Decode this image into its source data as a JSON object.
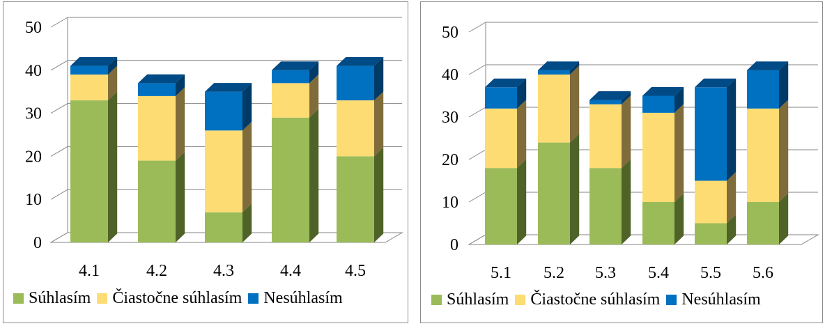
{
  "colors": {
    "green": "#9bbb59",
    "yellow": "#fedc74",
    "blue": "#0070c0"
  },
  "chart_data": [
    {
      "type": "bar",
      "stacked": true,
      "style": "3d",
      "categories": [
        "4.1",
        "4.2",
        "4.3",
        "4.4",
        "4.5"
      ],
      "series": [
        {
          "name": "Súhlasím",
          "values": [
            33,
            19,
            7,
            29,
            20
          ]
        },
        {
          "name": "Čiastočne súhlasím",
          "values": [
            6,
            15,
            19,
            8,
            13
          ]
        },
        {
          "name": "Nesúhlasím",
          "values": [
            2,
            3,
            9,
            3,
            8
          ]
        }
      ],
      "yticks": [
        0,
        10,
        20,
        30,
        40,
        50
      ],
      "ylim": [
        0,
        50
      ],
      "grid": true,
      "legend": "bottom"
    },
    {
      "type": "bar",
      "stacked": true,
      "style": "3d",
      "categories": [
        "5.1",
        "5.2",
        "5.3",
        "5.4",
        "5.5",
        "5.6"
      ],
      "series": [
        {
          "name": "Súhlasím",
          "values": [
            18,
            24,
            18,
            10,
            5,
            10
          ]
        },
        {
          "name": "Čiastočne súhlasím",
          "values": [
            14,
            16,
            15,
            21,
            10,
            22
          ]
        },
        {
          "name": "Nesúhlasím",
          "values": [
            5,
            1,
            1,
            4,
            22,
            9
          ]
        }
      ],
      "yticks": [
        0,
        10,
        20,
        30,
        40,
        50
      ],
      "ylim": [
        0,
        50
      ],
      "grid": true,
      "legend": "bottom"
    }
  ]
}
